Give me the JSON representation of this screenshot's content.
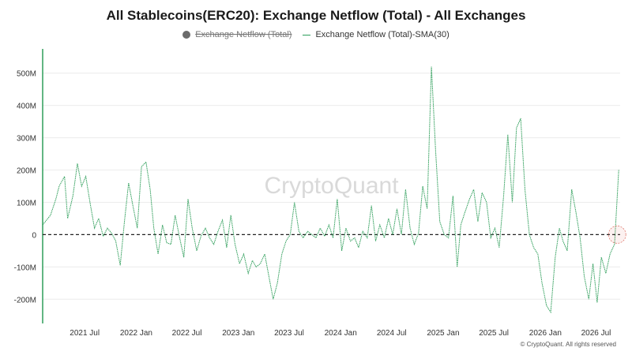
{
  "chart_data": {
    "type": "line",
    "title": "All Stablecoins(ERC20): Exchange Netflow (Total) - All Exchanges",
    "legend": [
      {
        "name": "Exchange Netflow (Total)",
        "hidden": true,
        "color": "#6b6b6b"
      },
      {
        "name": "Exchange Netflow (Total)-SMA(30)",
        "hidden": false,
        "color": "#2e9e5a"
      }
    ],
    "x_tick_labels": [
      "2021 Jul",
      "2022 Jan",
      "2022 Jul",
      "2023 Jan",
      "2023 Jul",
      "2024 Jan",
      "2024 Jul",
      "2025 Jan",
      "2025 Jul",
      "2026 Jan",
      "2026 Jul"
    ],
    "y_tick_labels": [
      "500M",
      "400M",
      "300M",
      "200M",
      "100M",
      "0",
      "-100M",
      "-200M"
    ],
    "y_ticks": [
      500,
      400,
      300,
      200,
      100,
      0,
      -100,
      -200
    ],
    "ylim": [
      -275,
      575
    ],
    "xlim": [
      "2021-02-01",
      "2026-09-25"
    ],
    "baseline": 0,
    "watermark": "CryptoQuant",
    "copyright": "© CryptoQuant. All rights reserved",
    "series": [
      {
        "name": "Exchange Netflow (Total)-SMA(30)",
        "color": "#2e9e5a",
        "x": [
          "2021-02-01",
          "2021-03-01",
          "2021-03-20",
          "2021-04-01",
          "2021-04-20",
          "2021-05-01",
          "2021-05-20",
          "2021-06-05",
          "2021-06-20",
          "2021-07-05",
          "2021-07-20",
          "2021-08-05",
          "2021-08-20",
          "2021-09-05",
          "2021-09-20",
          "2021-10-05",
          "2021-10-20",
          "2021-11-05",
          "2021-11-20",
          "2021-12-05",
          "2021-12-20",
          "2022-01-05",
          "2022-01-20",
          "2022-02-05",
          "2022-02-20",
          "2022-03-05",
          "2022-03-20",
          "2022-04-05",
          "2022-04-20",
          "2022-05-05",
          "2022-05-20",
          "2022-06-05",
          "2022-06-20",
          "2022-07-05",
          "2022-07-20",
          "2022-08-05",
          "2022-08-20",
          "2022-09-05",
          "2022-09-20",
          "2022-10-05",
          "2022-10-20",
          "2022-11-05",
          "2022-11-20",
          "2022-12-05",
          "2022-12-20",
          "2023-01-05",
          "2023-01-20",
          "2023-02-05",
          "2023-02-20",
          "2023-03-05",
          "2023-03-20",
          "2023-04-05",
          "2023-04-20",
          "2023-05-05",
          "2023-05-20",
          "2023-06-05",
          "2023-06-20",
          "2023-07-05",
          "2023-07-20",
          "2023-08-05",
          "2023-08-20",
          "2023-09-05",
          "2023-09-20",
          "2023-10-05",
          "2023-10-20",
          "2023-11-05",
          "2023-11-20",
          "2023-12-05",
          "2023-12-20",
          "2024-01-05",
          "2024-01-20",
          "2024-02-05",
          "2024-02-20",
          "2024-03-05",
          "2024-03-20",
          "2024-04-05",
          "2024-04-20",
          "2024-05-05",
          "2024-05-20",
          "2024-06-05",
          "2024-06-20",
          "2024-07-05",
          "2024-07-20",
          "2024-08-05",
          "2024-08-20",
          "2024-09-05",
          "2024-09-20",
          "2024-10-05",
          "2024-10-20",
          "2024-11-05",
          "2024-11-20",
          "2024-12-05",
          "2024-12-20",
          "2025-01-05",
          "2025-01-20",
          "2025-02-05",
          "2025-02-20",
          "2025-03-05",
          "2025-03-20",
          "2025-04-05",
          "2025-04-20",
          "2025-05-05",
          "2025-05-20",
          "2025-06-05",
          "2025-06-20",
          "2025-07-05",
          "2025-07-20",
          "2025-08-05",
          "2025-08-20",
          "2025-09-05",
          "2025-09-20",
          "2025-10-05",
          "2025-10-20",
          "2025-11-05",
          "2025-11-20",
          "2025-12-05",
          "2025-12-20",
          "2026-01-05",
          "2026-01-20",
          "2026-02-05",
          "2026-02-20",
          "2026-03-05",
          "2026-03-20",
          "2026-04-05",
          "2026-04-20",
          "2026-05-05",
          "2026-05-20",
          "2026-06-05",
          "2026-06-20",
          "2026-07-05",
          "2026-07-20",
          "2026-08-05",
          "2026-08-20",
          "2026-09-05",
          "2026-09-20"
        ],
        "y": [
          30,
          60,
          110,
          150,
          180,
          50,
          120,
          220,
          150,
          180,
          100,
          20,
          50,
          -5,
          20,
          5,
          -20,
          -95,
          40,
          160,
          90,
          20,
          210,
          225,
          140,
          20,
          -60,
          30,
          -25,
          -30,
          60,
          -10,
          -70,
          110,
          20,
          -50,
          -5,
          20,
          -10,
          -30,
          10,
          45,
          -40,
          60,
          -30,
          -90,
          -60,
          -120,
          -80,
          -100,
          -90,
          -60,
          -130,
          -200,
          -150,
          -60,
          -20,
          0,
          100,
          10,
          -10,
          10,
          0,
          -10,
          20,
          -5,
          30,
          -10,
          110,
          -50,
          20,
          -20,
          -10,
          -40,
          10,
          -10,
          90,
          -20,
          30,
          -10,
          50,
          0,
          80,
          0,
          140,
          20,
          -30,
          5,
          150,
          80,
          520,
          260,
          40,
          0,
          -10,
          120,
          -100,
          30,
          70,
          110,
          140,
          40,
          130,
          100,
          -10,
          20,
          -40,
          120,
          310,
          100,
          330,
          360,
          140,
          0,
          -40,
          -60,
          -150,
          -220,
          -240,
          -70,
          20,
          -20,
          -50,
          140,
          70,
          -10,
          -130,
          -200,
          -90,
          -210,
          -70,
          -120,
          -60,
          -30,
          200
        ]
      }
    ]
  }
}
